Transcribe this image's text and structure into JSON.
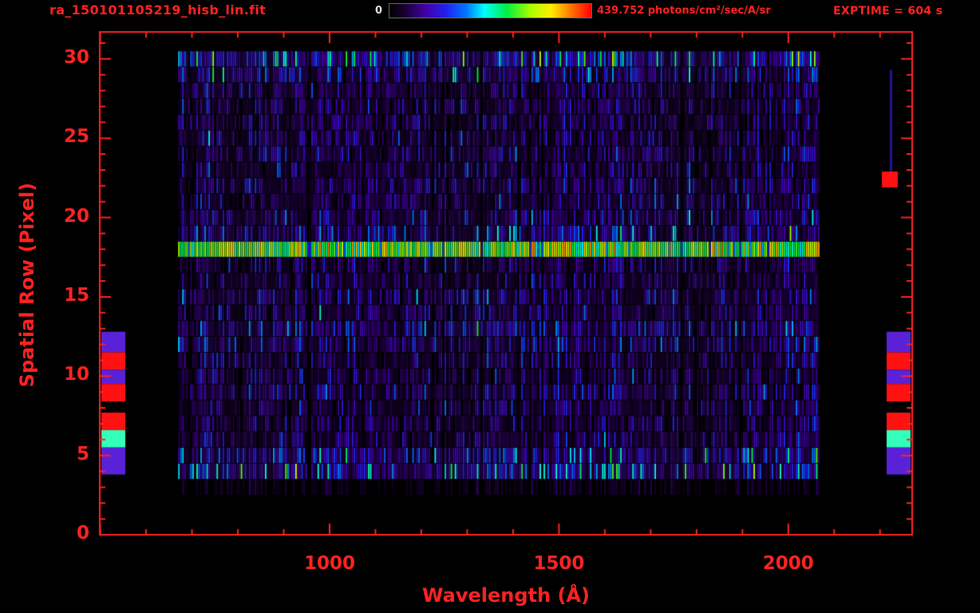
{
  "accent_color": "#ff2222",
  "background_color": "#000000",
  "header": {
    "filename": "ra_150101105219_hisb_lin.fit",
    "colorbar": {
      "min_label": "0",
      "max_label": "439.752 photons/cm²/sec/A/sr"
    },
    "exptime_label": "EXPTIME = 604 s"
  },
  "chart_data": {
    "type": "heatmap",
    "title": "ra_150101105219_hisb_lin.fit",
    "xlabel": "Wavelength (Å)",
    "ylabel": "Spatial Row (Pixel)",
    "x_ticks": [
      "1000",
      "1500",
      "2000"
    ],
    "x_tick_values": [
      1000,
      1500,
      2000
    ],
    "y_ticks": [
      "0",
      "5",
      "10",
      "15",
      "20",
      "25",
      "30"
    ],
    "y_tick_values": [
      0,
      5,
      10,
      15,
      20,
      25,
      30
    ],
    "x_axis_range": [
      499,
      2270
    ],
    "y_axis_range": [
      0,
      31.7
    ],
    "x_minor_step": 100,
    "y_minor_step": 1,
    "grid": false,
    "colorbar_range": [
      0,
      439.752
    ],
    "colorbar_units": "photons/cm²/sec/A/sr",
    "exptime_seconds": 604,
    "data_x_range": [
      670,
      2065
    ],
    "data_y_range": [
      3,
      30
    ],
    "bright_row": 18,
    "row_profile": [
      0,
      0,
      0,
      0.06,
      0.3,
      0.26,
      0.16,
      0.14,
      0.15,
      0.17,
      0.15,
      0.16,
      0.2,
      0.22,
      0.16,
      0.18,
      0.15,
      0.14,
      0.6,
      0.22,
      0.18,
      0.16,
      0.17,
      0.15,
      0.16,
      0.15,
      0.14,
      0.15,
      0.16,
      0.22,
      0.34
    ],
    "colormap": [
      [
        0.0,
        "#000000"
      ],
      [
        0.08,
        "#1c0038"
      ],
      [
        0.18,
        "#4400aa"
      ],
      [
        0.28,
        "#2222ee"
      ],
      [
        0.38,
        "#0077ff"
      ],
      [
        0.47,
        "#00ffff"
      ],
      [
        0.58,
        "#00ee44"
      ],
      [
        0.7,
        "#aaff00"
      ],
      [
        0.8,
        "#ffee00"
      ],
      [
        0.9,
        "#ff7700"
      ],
      [
        1.0,
        "#ff0000"
      ]
    ],
    "seed": 150101,
    "cell_width_angstrom": 4.4,
    "left_edge_blocks": [
      {
        "row0": 11.5,
        "row1": 12.8,
        "color": "#5a22d8"
      },
      {
        "row0": 10.4,
        "row1": 11.5,
        "color": "#ff1111"
      },
      {
        "row0": 9.5,
        "row1": 10.4,
        "color": "#5a22d8"
      },
      {
        "row0": 8.4,
        "row1": 9.5,
        "color": "#ff1111"
      },
      {
        "row0": 6.6,
        "row1": 7.7,
        "color": "#ff1111"
      },
      {
        "row0": 5.5,
        "row1": 6.6,
        "color": "#33ffbb"
      },
      {
        "row0": 3.8,
        "row1": 5.5,
        "color": "#5a22d8"
      }
    ],
    "right_edge_blocks": [
      {
        "row0": 11.5,
        "row1": 12.8,
        "color": "#5a22d8"
      },
      {
        "row0": 10.4,
        "row1": 11.5,
        "color": "#ff1111"
      },
      {
        "row0": 9.5,
        "row1": 10.4,
        "color": "#5a22d8"
      },
      {
        "row0": 8.4,
        "row1": 9.5,
        "color": "#ff1111"
      },
      {
        "row0": 6.6,
        "row1": 7.7,
        "color": "#ff1111"
      },
      {
        "row0": 5.5,
        "row1": 6.6,
        "color": "#33ffbb"
      },
      {
        "row0": 3.8,
        "row1": 5.5,
        "color": "#5a22d8"
      },
      {
        "row0": 21.9,
        "row1": 22.9,
        "color": "#ff1111",
        "inset": true
      }
    ],
    "right_streak": {
      "row0": 22.9,
      "row1": 29.3,
      "color": "#2a1090"
    }
  }
}
